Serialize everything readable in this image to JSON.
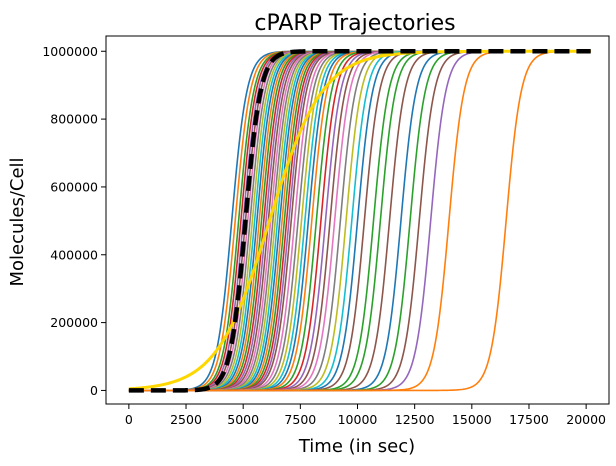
{
  "chart_data": {
    "type": "line",
    "title": "cPARP Trajectories",
    "xlabel": "Time (in sec)",
    "ylabel": "Molecules/Cell",
    "xlim": [
      -1000,
      21000
    ],
    "ylim": [
      -40000,
      1045000
    ],
    "xticks": [
      0,
      2500,
      5000,
      7500,
      10000,
      12500,
      15000,
      17500,
      20000
    ],
    "yticks": [
      0,
      200000,
      400000,
      600000,
      800000,
      1000000
    ],
    "xtick_labels": [
      "0",
      "2500",
      "5000",
      "7500",
      "10000",
      "12500",
      "15000",
      "17500",
      "20000"
    ],
    "ytick_labels": [
      "0",
      "200000",
      "400000",
      "600000",
      "800000",
      "1000000"
    ],
    "grid": false,
    "legend": "none",
    "curve_model": "logistic, y = 1000000 / (1 + exp(-(t - midpoint) / width))",
    "x_start": 0,
    "x_end": 20200,
    "y_max": 1000000,
    "colors": [
      "#1f77b4",
      "#ff7f0e",
      "#2ca02c",
      "#d62728",
      "#9467bd",
      "#8c564b",
      "#e377c2",
      "#7f7f7f",
      "#bcbd22",
      "#17becf"
    ],
    "series": [
      {
        "midpoint": 4500,
        "width": 330,
        "color": "#1f77b4"
      },
      {
        "midpoint": 4650,
        "width": 330,
        "color": "#ff7f0e"
      },
      {
        "midpoint": 4800,
        "width": 330,
        "color": "#2ca02c"
      },
      {
        "midpoint": 4900,
        "width": 330,
        "color": "#d62728"
      },
      {
        "midpoint": 5000,
        "width": 330,
        "color": "#9467bd"
      },
      {
        "midpoint": 5100,
        "width": 330,
        "color": "#8c564b"
      },
      {
        "midpoint": 5200,
        "width": 330,
        "color": "#e377c2"
      },
      {
        "midpoint": 5300,
        "width": 330,
        "color": "#7f7f7f"
      },
      {
        "midpoint": 5400,
        "width": 330,
        "color": "#bcbd22"
      },
      {
        "midpoint": 5500,
        "width": 330,
        "color": "#17becf"
      },
      {
        "midpoint": 5600,
        "width": 330,
        "color": "#1f77b4"
      },
      {
        "midpoint": 5700,
        "width": 330,
        "color": "#ff7f0e"
      },
      {
        "midpoint": 5800,
        "width": 330,
        "color": "#2ca02c"
      },
      {
        "midpoint": 5900,
        "width": 330,
        "color": "#d62728"
      },
      {
        "midpoint": 6000,
        "width": 330,
        "color": "#9467bd"
      },
      {
        "midpoint": 6100,
        "width": 330,
        "color": "#8c564b"
      },
      {
        "midpoint": 6200,
        "width": 330,
        "color": "#e377c2"
      },
      {
        "midpoint": 6300,
        "width": 330,
        "color": "#7f7f7f"
      },
      {
        "midpoint": 6400,
        "width": 330,
        "color": "#bcbd22"
      },
      {
        "midpoint": 6500,
        "width": 330,
        "color": "#17becf"
      },
      {
        "midpoint": 6600,
        "width": 330,
        "color": "#1f77b4"
      },
      {
        "midpoint": 6700,
        "width": 330,
        "color": "#ff7f0e"
      },
      {
        "midpoint": 6800,
        "width": 330,
        "color": "#2ca02c"
      },
      {
        "midpoint": 6900,
        "width": 330,
        "color": "#d62728"
      },
      {
        "midpoint": 7000,
        "width": 330,
        "color": "#9467bd"
      },
      {
        "midpoint": 7100,
        "width": 330,
        "color": "#8c564b"
      },
      {
        "midpoint": 7250,
        "width": 330,
        "color": "#e377c2"
      },
      {
        "midpoint": 7400,
        "width": 330,
        "color": "#7f7f7f"
      },
      {
        "midpoint": 7550,
        "width": 330,
        "color": "#bcbd22"
      },
      {
        "midpoint": 7700,
        "width": 330,
        "color": "#17becf"
      },
      {
        "midpoint": 7850,
        "width": 330,
        "color": "#1f77b4"
      },
      {
        "midpoint": 8000,
        "width": 330,
        "color": "#ff7f0e"
      },
      {
        "midpoint": 8200,
        "width": 330,
        "color": "#2ca02c"
      },
      {
        "midpoint": 8400,
        "width": 330,
        "color": "#d62728"
      },
      {
        "midpoint": 8600,
        "width": 330,
        "color": "#9467bd"
      },
      {
        "midpoint": 8800,
        "width": 330,
        "color": "#8c564b"
      },
      {
        "midpoint": 9000,
        "width": 330,
        "color": "#e377c2"
      },
      {
        "midpoint": 9250,
        "width": 330,
        "color": "#7f7f7f"
      },
      {
        "midpoint": 9500,
        "width": 330,
        "color": "#bcbd22"
      },
      {
        "midpoint": 9750,
        "width": 330,
        "color": "#17becf"
      },
      {
        "midpoint": 10000,
        "width": 330,
        "color": "#1f77b4"
      },
      {
        "midpoint": 10300,
        "width": 330,
        "color": "#8c564b"
      },
      {
        "midpoint": 10700,
        "width": 330,
        "color": "#2ca02c"
      },
      {
        "midpoint": 11000,
        "width": 330,
        "color": "#2ca02c"
      },
      {
        "midpoint": 11400,
        "width": 330,
        "color": "#8c564b"
      },
      {
        "midpoint": 11900,
        "width": 330,
        "color": "#1f77b4"
      },
      {
        "midpoint": 12300,
        "width": 330,
        "color": "#2ca02c"
      },
      {
        "midpoint": 12700,
        "width": 330,
        "color": "#8c564b"
      },
      {
        "midpoint": 13200,
        "width": 330,
        "color": "#9467bd"
      },
      {
        "midpoint": 14000,
        "width": 330,
        "color": "#ff7f0e"
      },
      {
        "midpoint": 16500,
        "width": 330,
        "color": "#ff7f0e"
      },
      {
        "midpoint": 6150,
        "width": 1150,
        "color": "#ffd700",
        "line_width": 3
      },
      {
        "midpoint": 5100,
        "width": 330,
        "color": "#000000",
        "line_width": 4.5,
        "dash": "15,7"
      }
    ]
  }
}
